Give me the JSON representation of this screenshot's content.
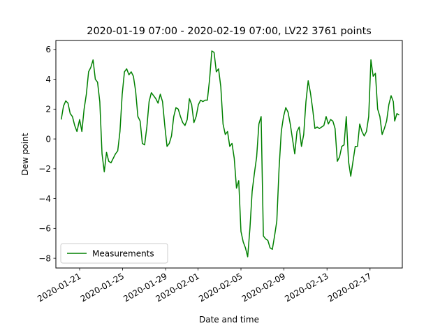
{
  "chart_data": {
    "type": "line",
    "title": "2020-01-19 07:00 - 2020-02-19 07:00, LV22 3761 points",
    "xlabel": "Date and time",
    "ylabel": "Dew point",
    "x_range": [
      "2020-01-18 19:00",
      "2020-02-20 00:00"
    ],
    "ylim": [
      -8.65,
      6.6
    ],
    "x_ticks": [
      "2020-01-21",
      "2020-01-25",
      "2020-01-29",
      "2020-02-01",
      "2020-02-05",
      "2020-02-09",
      "2020-02-13",
      "2020-02-17"
    ],
    "y_ticks": [
      6,
      4,
      2,
      0,
      -2,
      -4,
      -6,
      -8
    ],
    "grid": false,
    "legend_position": "lower-left",
    "series": [
      {
        "name": "Measurements",
        "color": "#008000",
        "points": [
          [
            "2020-01-19 07:00",
            1.3
          ],
          [
            "2020-01-19 12:00",
            2.2
          ],
          [
            "2020-01-19 17:00",
            2.55
          ],
          [
            "2020-01-19 22:00",
            2.4
          ],
          [
            "2020-01-20 03:00",
            1.7
          ],
          [
            "2020-01-20 08:00",
            1.5
          ],
          [
            "2020-01-20 13:00",
            0.9
          ],
          [
            "2020-01-20 18:00",
            0.5
          ],
          [
            "2020-01-21 00:00",
            1.3
          ],
          [
            "2020-01-21 05:00",
            0.5
          ],
          [
            "2020-01-21 10:00",
            2.0
          ],
          [
            "2020-01-21 15:00",
            3.0
          ],
          [
            "2020-01-21 20:00",
            4.5
          ],
          [
            "2020-01-22 01:00",
            4.8
          ],
          [
            "2020-01-22 06:00",
            5.3
          ],
          [
            "2020-01-22 11:00",
            4.0
          ],
          [
            "2020-01-22 16:00",
            3.8
          ],
          [
            "2020-01-22 21:00",
            2.5
          ],
          [
            "2020-01-23 02:00",
            -1.0
          ],
          [
            "2020-01-23 07:00",
            -2.2
          ],
          [
            "2020-01-23 12:00",
            -0.9
          ],
          [
            "2020-01-23 17:00",
            -1.5
          ],
          [
            "2020-01-23 22:00",
            -1.6
          ],
          [
            "2020-01-24 03:00",
            -1.3
          ],
          [
            "2020-01-24 08:00",
            -1.0
          ],
          [
            "2020-01-24 13:00",
            -0.8
          ],
          [
            "2020-01-24 18:00",
            0.5
          ],
          [
            "2020-01-24 23:00",
            3.0
          ],
          [
            "2020-01-25 04:00",
            4.5
          ],
          [
            "2020-01-25 09:00",
            4.7
          ],
          [
            "2020-01-25 14:00",
            4.3
          ],
          [
            "2020-01-25 19:00",
            4.5
          ],
          [
            "2020-01-26 00:00",
            4.2
          ],
          [
            "2020-01-26 05:00",
            3.2
          ],
          [
            "2020-01-26 10:00",
            1.5
          ],
          [
            "2020-01-26 15:00",
            1.2
          ],
          [
            "2020-01-26 20:00",
            -0.3
          ],
          [
            "2020-01-27 01:00",
            -0.4
          ],
          [
            "2020-01-27 06:00",
            0.8
          ],
          [
            "2020-01-27 11:00",
            2.5
          ],
          [
            "2020-01-27 16:00",
            3.1
          ],
          [
            "2020-01-27 21:00",
            2.9
          ],
          [
            "2020-01-28 02:00",
            2.7
          ],
          [
            "2020-01-28 07:00",
            2.4
          ],
          [
            "2020-01-28 12:00",
            3.0
          ],
          [
            "2020-01-28 17:00",
            2.5
          ],
          [
            "2020-01-28 22:00",
            0.9
          ],
          [
            "2020-01-29 03:00",
            -0.5
          ],
          [
            "2020-01-29 08:00",
            -0.3
          ],
          [
            "2020-01-29 13:00",
            0.2
          ],
          [
            "2020-01-29 18:00",
            1.5
          ],
          [
            "2020-01-29 23:00",
            2.1
          ],
          [
            "2020-01-30 04:00",
            2.0
          ],
          [
            "2020-01-30 09:00",
            1.5
          ],
          [
            "2020-01-30 14:00",
            1.1
          ],
          [
            "2020-01-30 19:00",
            0.9
          ],
          [
            "2020-01-31 00:00",
            1.3
          ],
          [
            "2020-01-31 05:00",
            2.7
          ],
          [
            "2020-01-31 10:00",
            2.3
          ],
          [
            "2020-01-31 15:00",
            1.1
          ],
          [
            "2020-01-31 20:00",
            1.5
          ],
          [
            "2020-02-01 01:00",
            2.3
          ],
          [
            "2020-02-01 06:00",
            2.6
          ],
          [
            "2020-02-01 11:00",
            2.5
          ],
          [
            "2020-02-01 16:00",
            2.6
          ],
          [
            "2020-02-01 21:00",
            2.6
          ],
          [
            "2020-02-02 02:00",
            4.0
          ],
          [
            "2020-02-02 07:00",
            5.9
          ],
          [
            "2020-02-02 12:00",
            5.8
          ],
          [
            "2020-02-02 17:00",
            4.5
          ],
          [
            "2020-02-02 22:00",
            4.7
          ],
          [
            "2020-02-03 03:00",
            3.5
          ],
          [
            "2020-02-03 08:00",
            1.0
          ],
          [
            "2020-02-03 13:00",
            0.3
          ],
          [
            "2020-02-03 18:00",
            0.5
          ],
          [
            "2020-02-03 23:00",
            -0.5
          ],
          [
            "2020-02-04 04:00",
            -0.3
          ],
          [
            "2020-02-04 09:00",
            -1.3
          ],
          [
            "2020-02-04 14:00",
            -3.3
          ],
          [
            "2020-02-04 19:00",
            -2.8
          ],
          [
            "2020-02-05 00:00",
            -6.2
          ],
          [
            "2020-02-05 05:00",
            -6.9
          ],
          [
            "2020-02-05 10:00",
            -7.3
          ],
          [
            "2020-02-05 15:00",
            -7.9
          ],
          [
            "2020-02-05 20:00",
            -6.0
          ],
          [
            "2020-02-06 01:00",
            -3.5
          ],
          [
            "2020-02-06 06:00",
            -2.3
          ],
          [
            "2020-02-06 11:00",
            -1.2
          ],
          [
            "2020-02-06 16:00",
            1.0
          ],
          [
            "2020-02-06 21:00",
            1.5
          ],
          [
            "2020-02-07 02:00",
            -6.5
          ],
          [
            "2020-02-07 07:00",
            -6.7
          ],
          [
            "2020-02-07 12:00",
            -6.8
          ],
          [
            "2020-02-07 17:00",
            -7.3
          ],
          [
            "2020-02-07 22:00",
            -7.4
          ],
          [
            "2020-02-08 03:00",
            -6.5
          ],
          [
            "2020-02-08 08:00",
            -5.5
          ],
          [
            "2020-02-08 13:00",
            -2.0
          ],
          [
            "2020-02-08 18:00",
            0.5
          ],
          [
            "2020-02-08 23:00",
            1.5
          ],
          [
            "2020-02-09 04:00",
            2.1
          ],
          [
            "2020-02-09 09:00",
            1.8
          ],
          [
            "2020-02-09 14:00",
            1.0
          ],
          [
            "2020-02-09 19:00",
            0.0
          ],
          [
            "2020-02-10 00:00",
            -1.0
          ],
          [
            "2020-02-10 05:00",
            0.5
          ],
          [
            "2020-02-10 10:00",
            0.8
          ],
          [
            "2020-02-10 15:00",
            -0.5
          ],
          [
            "2020-02-10 20:00",
            0.3
          ],
          [
            "2020-02-11 01:00",
            2.5
          ],
          [
            "2020-02-11 06:00",
            3.9
          ],
          [
            "2020-02-11 11:00",
            3.1
          ],
          [
            "2020-02-11 16:00",
            2.0
          ],
          [
            "2020-02-11 21:00",
            0.7
          ],
          [
            "2020-02-12 02:00",
            0.8
          ],
          [
            "2020-02-12 07:00",
            0.7
          ],
          [
            "2020-02-12 12:00",
            0.8
          ],
          [
            "2020-02-12 17:00",
            0.9
          ],
          [
            "2020-02-12 22:00",
            1.5
          ],
          [
            "2020-02-13 03:00",
            1.0
          ],
          [
            "2020-02-13 08:00",
            1.3
          ],
          [
            "2020-02-13 13:00",
            1.2
          ],
          [
            "2020-02-13 18:00",
            0.7
          ],
          [
            "2020-02-13 23:00",
            -1.5
          ],
          [
            "2020-02-14 04:00",
            -1.2
          ],
          [
            "2020-02-14 09:00",
            -0.5
          ],
          [
            "2020-02-14 14:00",
            -0.4
          ],
          [
            "2020-02-14 19:00",
            1.5
          ],
          [
            "2020-02-15 00:00",
            -1.5
          ],
          [
            "2020-02-15 05:00",
            -2.5
          ],
          [
            "2020-02-15 10:00",
            -1.5
          ],
          [
            "2020-02-15 15:00",
            -0.5
          ],
          [
            "2020-02-15 20:00",
            -0.5
          ],
          [
            "2020-02-16 01:00",
            1.0
          ],
          [
            "2020-02-16 06:00",
            0.5
          ],
          [
            "2020-02-16 11:00",
            0.2
          ],
          [
            "2020-02-16 16:00",
            0.5
          ],
          [
            "2020-02-16 21:00",
            1.5
          ],
          [
            "2020-02-17 02:00",
            5.3
          ],
          [
            "2020-02-17 07:00",
            4.2
          ],
          [
            "2020-02-17 12:00",
            4.4
          ],
          [
            "2020-02-17 17:00",
            2.0
          ],
          [
            "2020-02-17 22:00",
            1.5
          ],
          [
            "2020-02-18 03:00",
            0.3
          ],
          [
            "2020-02-18 08:00",
            0.7
          ],
          [
            "2020-02-18 13:00",
            1.2
          ],
          [
            "2020-02-18 18:00",
            2.3
          ],
          [
            "2020-02-18 23:00",
            2.9
          ],
          [
            "2020-02-19 04:00",
            2.5
          ],
          [
            "2020-02-19 07:00",
            1.2
          ],
          [
            "2020-02-19 12:00",
            1.7
          ],
          [
            "2020-02-19 17:00",
            1.6
          ]
        ]
      }
    ]
  }
}
